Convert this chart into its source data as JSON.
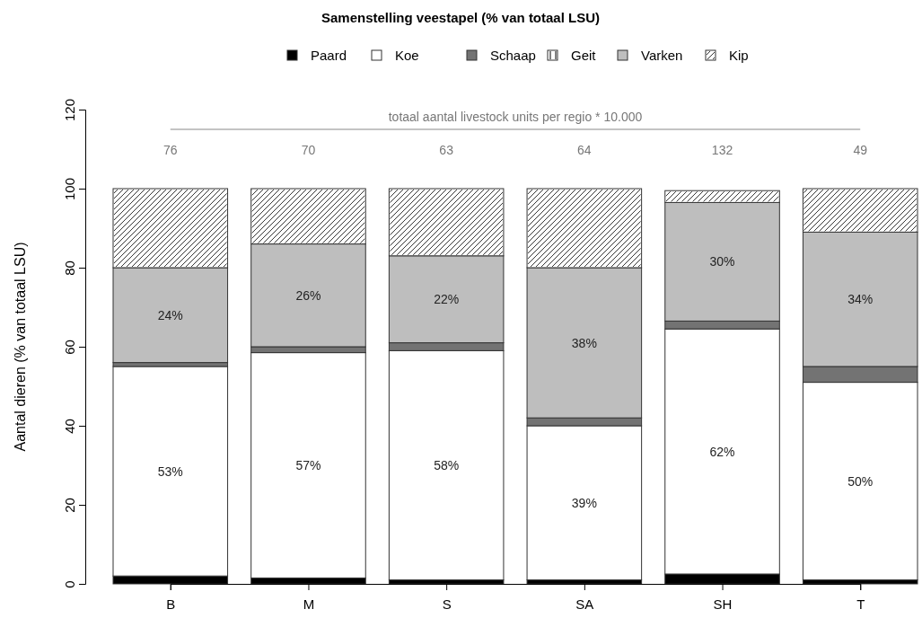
{
  "chart_data": {
    "type": "bar",
    "title": "Samenstelling veestapel (% van totaal LSU)",
    "ylabel": "Aantal dieren (% van totaal LSU)",
    "categories": [
      "B",
      "M",
      "S",
      "SA",
      "SH",
      "T"
    ],
    "stacked": true,
    "legend": "top",
    "grid": false,
    "ylim": [
      0,
      120
    ],
    "yticks": [
      0,
      20,
      40,
      60,
      80,
      100,
      120
    ],
    "series": [
      {
        "name": "Paard",
        "color": "#000000",
        "values": [
          2,
          1.5,
          1,
          1,
          2.5,
          1
        ]
      },
      {
        "name": "Koe",
        "color": "#ffffff",
        "values": [
          53,
          57,
          58,
          39,
          62,
          50
        ],
        "value_labels": [
          "53%",
          "57%",
          "58%",
          "39%",
          "62%",
          "50%"
        ]
      },
      {
        "name": "Schaap",
        "color": "#737373",
        "values": [
          1,
          1.5,
          2,
          2,
          2,
          4
        ]
      },
      {
        "name": "Geit",
        "color": "#ffffff",
        "values": [
          0,
          0,
          0,
          0,
          0,
          0
        ]
      },
      {
        "name": "Varken",
        "color": "#bebebe",
        "values": [
          24,
          26,
          22,
          38,
          30,
          34
        ],
        "value_labels": [
          "24%",
          "26%",
          "22%",
          "38%",
          "30%",
          "34%"
        ]
      },
      {
        "name": "Kip",
        "color": "#ffffff",
        "values": [
          20,
          14,
          17,
          20,
          3,
          11
        ]
      }
    ],
    "ref_lines": [
      {
        "axis": "y",
        "value": 115,
        "label": "totaal aantal livestock units per regio * 10.000",
        "color": "#888888"
      }
    ],
    "annotations": [
      "76",
      "70",
      "63",
      "64",
      "132",
      "49"
    ]
  }
}
